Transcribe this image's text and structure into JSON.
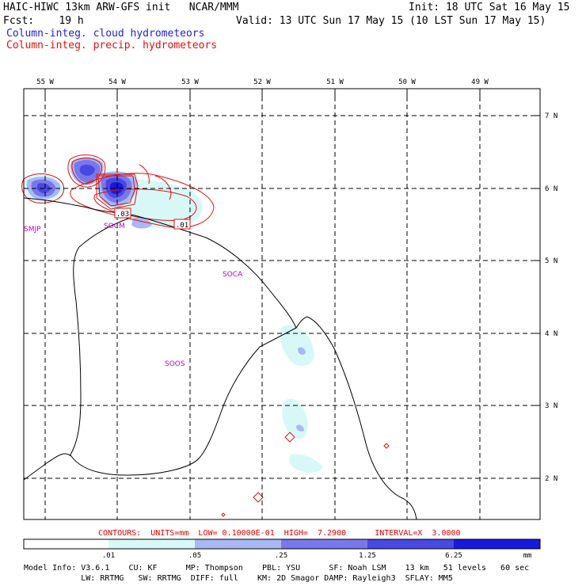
{
  "header": {
    "line1_left": "HAIC-HIWC 13km ARW-GFS init   NCAR/MMM",
    "line1_right": "Init: 18 UTC Sat 16 May 15",
    "line2_left": "Fcst:    19 h",
    "line2_right": "Valid: 13 UTC Sun 17 May 15 (10 LST Sun 17 May 15)",
    "legend_cloud": "Column-integ. cloud hydrometeors",
    "legend_precip": "Column-integ. precip. hydrometeors",
    "cloud_color": "#2020e0",
    "precip_color": "#e01010"
  },
  "map": {
    "lon_labels": [
      "55 W",
      "54 W",
      "53 W",
      "52 W",
      "51 W",
      "50 W",
      "49 W"
    ],
    "lat_labels": [
      "7 N",
      "6 N",
      "5 N",
      "4 N",
      "3 N",
      "2 N"
    ],
    "stations": [
      "SMJP",
      "SOCM",
      "SOCA",
      "SOOS"
    ],
    "contour_labels": [
      ".03",
      ".01"
    ]
  },
  "contour_info": "CONTOURS:  UNITS=mm  LOW= 0.10000E-01  HIGH=  7.2900      INTERVAL=X  3.0000",
  "colorbar": {
    "tick_labels": [
      ".01",
      ".05",
      ".25",
      "1.25",
      "6.25"
    ],
    "units": "mm",
    "colors": [
      "#ffffff",
      "#d8f8f8",
      "#a8b8f4",
      "#7878ec",
      "#4848e4",
      "#1818e0"
    ]
  },
  "model_info": {
    "line1": "Model Info: V3.6.1    CU: KF      MP: Thompson    PBL: YSU      SF: Noah LSM    13 km   51 levels   60 sec",
    "line2": "            LW: RRTMG   SW: RRTMG  DIFF: full    KM: 2D Smagor DAMP: Rayleigh3  SFLAY: MM5"
  }
}
